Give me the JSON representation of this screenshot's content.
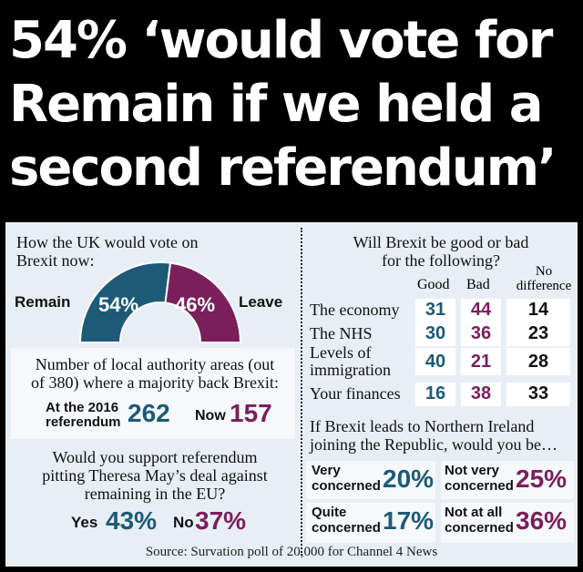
{
  "headline": {
    "line1": "54% ‘would vote for",
    "line2": "Remain if we held a",
    "line3": "second referendum’"
  },
  "colors": {
    "remain": "#1c5a78",
    "leave": "#7a1e5c",
    "background": "#000000",
    "panel": "#e8eef5"
  },
  "vote_now": {
    "question_line1": "How the UK would vote on",
    "question_line2": "Brexit now:",
    "remain_label": "Remain",
    "leave_label": "Leave",
    "remain_pct": "54%",
    "leave_pct": "46%"
  },
  "local_areas": {
    "question_line1": "Number of local authority areas (out",
    "question_line2": "of 380) where a majority back Brexit:",
    "at_2016_line1": "At the 2016",
    "at_2016_line2": "referendum",
    "at_2016_value": "262",
    "now_label": "Now",
    "now_value": "157"
  },
  "referendum_support": {
    "question_line1": "Would you support referendum",
    "question_line2": "pitting Theresa May’s deal against",
    "question_line3": "remaining in the EU?",
    "yes_label": "Yes",
    "yes_value": "43%",
    "no_label": "No",
    "no_value": "37%"
  },
  "good_bad": {
    "question_line1": "Will Brexit be good or bad",
    "question_line2": "for the following?",
    "col_good": "Good",
    "col_bad": "Bad",
    "col_nodiff_line1": "No",
    "col_nodiff_line2": "difference",
    "rows": [
      {
        "label_line1": "The economy",
        "label_line2": "",
        "good": "31",
        "bad": "44",
        "nodiff": "14"
      },
      {
        "label_line1": "The NHS",
        "label_line2": "",
        "good": "30",
        "bad": "36",
        "nodiff": "23"
      },
      {
        "label_line1": "Levels of",
        "label_line2": "immigration",
        "good": "40",
        "bad": "21",
        "nodiff": "28"
      },
      {
        "label_line1": "Your finances",
        "label_line2": "",
        "good": "16",
        "bad": "38",
        "nodiff": "33"
      }
    ]
  },
  "northern_ireland": {
    "question_line1": "If Brexit leads to Northern Ireland",
    "question_line2": "joining the Republic, would you be…",
    "very_line1": "Very",
    "very_line2": "concerned",
    "very_value": "20%",
    "notvery_line1": "Not very",
    "notvery_line2": "concerned",
    "notvery_value": "25%",
    "quite_line1": "Quite",
    "quite_line2": "concerned",
    "quite_value": "17%",
    "notatall_line1": "Not at all",
    "notatall_line2": "concerned",
    "notatall_value": "36%"
  },
  "source": "Source: Survation poll of 20,000 for Channel 4 News",
  "chart_data": {
    "type": "table",
    "title": "54% ‘would vote for Remain if we held a second referendum’",
    "vote_now": {
      "categories": [
        "Remain",
        "Leave"
      ],
      "values": [
        54,
        46
      ]
    },
    "local_authority_areas": {
      "categories": [
        "At the 2016 referendum",
        "Now"
      ],
      "values": [
        262,
        157
      ]
    },
    "referendum_support": {
      "categories": [
        "Yes",
        "No"
      ],
      "values": [
        43,
        37
      ]
    },
    "good_bad": {
      "categories": [
        "The economy",
        "The NHS",
        "Levels of immigration",
        "Your finances"
      ],
      "series": [
        {
          "name": "Good",
          "values": [
            31,
            30,
            40,
            16
          ]
        },
        {
          "name": "Bad",
          "values": [
            44,
            36,
            21,
            38
          ]
        },
        {
          "name": "No difference",
          "values": [
            14,
            23,
            28,
            33
          ]
        }
      ]
    },
    "northern_ireland": {
      "categories": [
        "Very concerned",
        "Not very concerned",
        "Quite concerned",
        "Not at all concerned"
      ],
      "values": [
        20,
        25,
        17,
        36
      ]
    }
  }
}
